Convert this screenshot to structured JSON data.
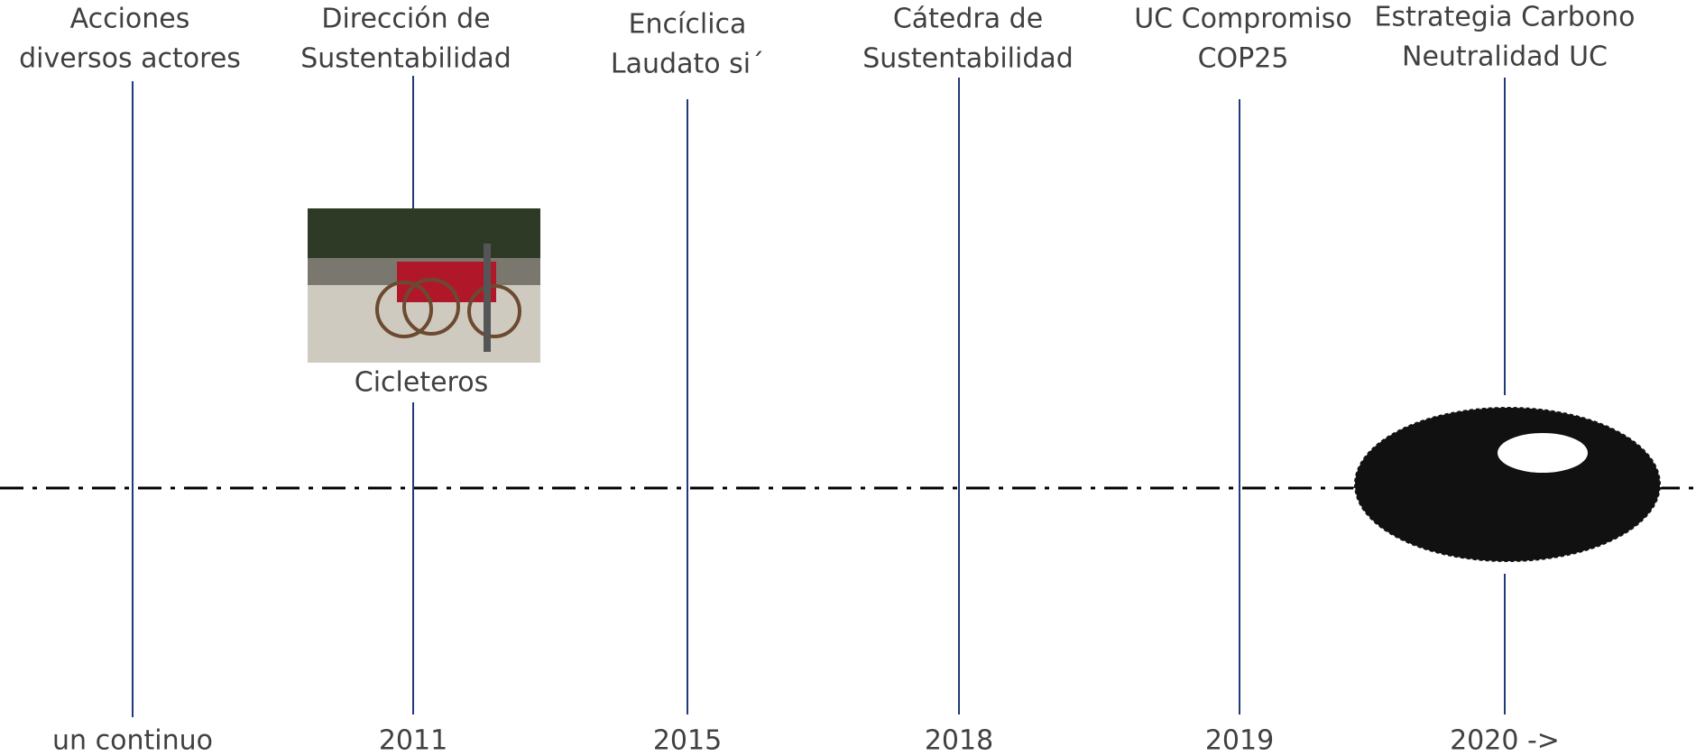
{
  "timeline": {
    "events": [
      {
        "label": [
          "Acciones",
          "diversos actores"
        ],
        "date": "un continuo"
      },
      {
        "label": [
          "Dirección de",
          "Sustentabilidad"
        ],
        "date": "2011",
        "caption": "Cicleteros"
      },
      {
        "label": [
          "Encíclica",
          "Laudato si´"
        ],
        "date": "2015"
      },
      {
        "label": [
          "Cátedra de",
          "Sustentabilidad"
        ],
        "date": "2018"
      },
      {
        "label": [
          "UC Compromiso",
          "COP25"
        ],
        "date": "2019"
      },
      {
        "label": [
          "Estrategia Carbono",
          "Neutralidad UC"
        ],
        "date": "2020 ->"
      }
    ]
  }
}
